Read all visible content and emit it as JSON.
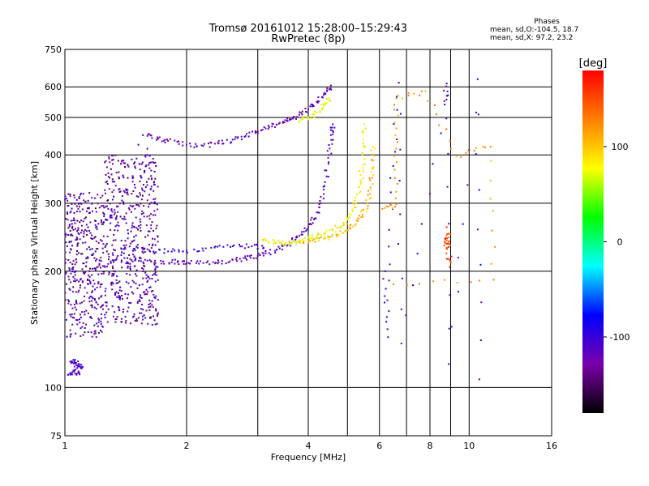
{
  "chart_data": {
    "type": "scatter",
    "title": "Tromsø 20161012 15:28:00–15:29:43",
    "subtitle": "RwPretec (8p)",
    "xlabel": "Frequency [MHz]",
    "ylabel": "Stationary phase Virtual Height [km]",
    "xscale": "log",
    "yscale": "log",
    "xlim": [
      1,
      16
    ],
    "ylim": [
      75,
      750
    ],
    "xticks": [
      1,
      2,
      4,
      6,
      8,
      10,
      16
    ],
    "yticks": [
      75,
      100,
      200,
      300,
      400,
      500,
      600,
      750
    ],
    "grid": true,
    "phase_panel": {
      "title": "Phases",
      "lines": [
        "mean, sd,O:-104.5, 18.7",
        "mean, sd,X:  97.2, 23.2"
      ]
    },
    "colorbar": {
      "label": "[deg]",
      "range": [
        -180,
        180
      ],
      "ticks": [
        100,
        0,
        -100
      ],
      "colors": [
        "#000000",
        "#7a00aa",
        "#0000ff",
        "#00ffff",
        "#00ff00",
        "#ffff00",
        "#ff7f00",
        "#ff0000"
      ]
    },
    "series": [
      {
        "phase": -110,
        "points": [
          [
            1.02,
            108
          ],
          [
            1.05,
            110
          ],
          [
            1.08,
            109
          ],
          [
            1.04,
            117
          ],
          [
            1.08,
            115
          ],
          [
            1.1,
            112
          ],
          [
            1.05,
            118
          ]
        ]
      },
      {
        "phase": -115,
        "points": [
          [
            1.15,
            200
          ],
          [
            1.3,
            210
          ],
          [
            1.45,
            215
          ],
          [
            1.6,
            213
          ],
          [
            1.75,
            212
          ],
          [
            1.9,
            211
          ],
          [
            2.0,
            210
          ],
          [
            2.2,
            210
          ],
          [
            2.4,
            211
          ],
          [
            2.6,
            214
          ],
          [
            2.8,
            216
          ],
          [
            3.0,
            219
          ],
          [
            3.2,
            223
          ],
          [
            3.4,
            229
          ],
          [
            3.6,
            237
          ],
          [
            3.8,
            247
          ],
          [
            4.0,
            260
          ],
          [
            4.15,
            274
          ],
          [
            4.3,
            300
          ],
          [
            4.4,
            340
          ],
          [
            4.5,
            400
          ],
          [
            4.55,
            450
          ],
          [
            4.6,
            480
          ]
        ]
      },
      {
        "phase": -100,
        "points": [
          [
            1.4,
            233
          ],
          [
            1.6,
            228
          ],
          [
            1.8,
            225
          ],
          [
            2.0,
            226
          ],
          [
            2.3,
            230
          ],
          [
            2.6,
            232
          ],
          [
            2.9,
            232
          ],
          [
            3.1,
            230
          ]
        ]
      },
      {
        "phase": -120,
        "points": [
          [
            1.6,
            448
          ],
          [
            1.7,
            440
          ],
          [
            1.8,
            435
          ],
          [
            2.0,
            425
          ],
          [
            2.2,
            422
          ],
          [
            2.4,
            428
          ],
          [
            2.6,
            438
          ],
          [
            2.8,
            448
          ],
          [
            3.0,
            460
          ],
          [
            3.2,
            472
          ],
          [
            3.4,
            484
          ],
          [
            3.6,
            495
          ],
          [
            3.8,
            508
          ],
          [
            4.0,
            525
          ],
          [
            4.2,
            548
          ],
          [
            4.4,
            575
          ],
          [
            4.55,
            605
          ]
        ]
      },
      {
        "phase": -105,
        "points": [
          [
            1.52,
            425
          ],
          [
            1.56,
            450
          ],
          [
            1.6,
            415
          ]
        ]
      },
      {
        "phase": 80,
        "points": [
          [
            3.1,
            240
          ],
          [
            3.3,
            238
          ],
          [
            3.5,
            236
          ],
          [
            3.7,
            238
          ],
          [
            3.9,
            240
          ],
          [
            4.1,
            244
          ],
          [
            4.3,
            248
          ],
          [
            4.6,
            255
          ],
          [
            4.9,
            265
          ],
          [
            5.1,
            280
          ],
          [
            5.25,
            300
          ],
          [
            5.35,
            330
          ],
          [
            5.45,
            370
          ],
          [
            5.5,
            420
          ],
          [
            5.5,
            480
          ]
        ]
      },
      {
        "phase": 105,
        "points": [
          [
            3.8,
            238
          ],
          [
            4.1,
            240
          ],
          [
            4.4,
            243
          ],
          [
            4.7,
            248
          ],
          [
            5.0,
            255
          ],
          [
            5.25,
            265
          ],
          [
            5.45,
            280
          ],
          [
            5.6,
            300
          ],
          [
            5.7,
            330
          ],
          [
            5.75,
            370
          ],
          [
            5.78,
            420
          ]
        ]
      },
      {
        "phase": 75,
        "points": [
          [
            3.8,
            490
          ],
          [
            4.0,
            500
          ],
          [
            4.2,
            515
          ],
          [
            4.4,
            540
          ],
          [
            4.5,
            560
          ]
        ]
      },
      {
        "phase": -100,
        "points": [
          [
            6.2,
            200
          ],
          [
            6.3,
            135
          ],
          [
            6.4,
            320
          ],
          [
            6.7,
            615
          ],
          [
            6.8,
            130
          ],
          [
            8.7,
            540
          ],
          [
            8.8,
            612
          ],
          [
            8.9,
            115
          ],
          [
            10.5,
            628
          ],
          [
            10.6,
            105
          ]
        ]
      },
      {
        "phase": 120,
        "points": [
          [
            6.1,
            290
          ],
          [
            6.6,
            298
          ],
          [
            6.6,
            415
          ],
          [
            6.6,
            560
          ],
          [
            7.8,
            585
          ],
          [
            9.3,
            398
          ],
          [
            11.3,
            420
          ],
          [
            11.5,
            190
          ],
          [
            6.5,
            185
          ]
        ]
      },
      {
        "phase": 150,
        "points": [
          [
            8.8,
            230
          ],
          [
            8.8,
            240
          ],
          [
            8.9,
            250
          ],
          [
            8.95,
            205
          ],
          [
            8.8,
            260
          ]
        ]
      }
    ]
  }
}
